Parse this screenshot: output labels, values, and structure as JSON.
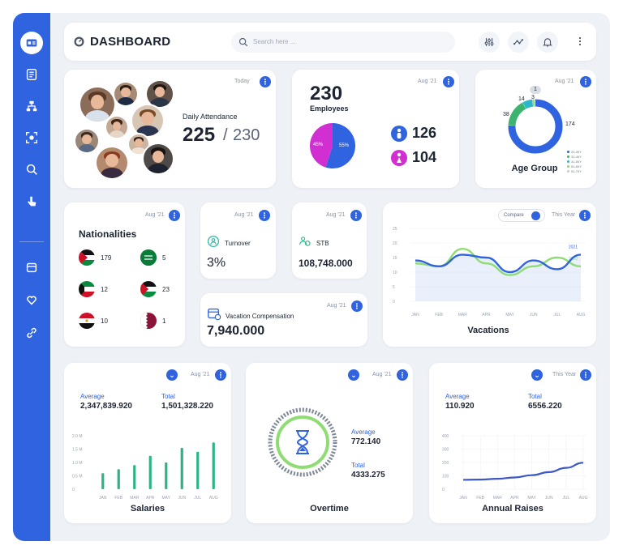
{
  "header": {
    "title": "DASHBOARD",
    "search_placeholder": "Search here ..."
  },
  "attendance": {
    "tag": "Today",
    "label": "Daily Attendance",
    "present": "225",
    "separator": "/",
    "total": "230"
  },
  "employees": {
    "tag": "Aug '21",
    "count": "230",
    "label": "Employees",
    "male_count": "126",
    "female_count": "104",
    "pie_male_pct": "55%",
    "pie_female_pct": "45%",
    "colors": {
      "male": "#2f63e0",
      "female": "#d12fd1"
    },
    "pie_data": [
      {
        "label": "Male",
        "value": 55
      },
      {
        "label": "Female",
        "value": 45
      }
    ]
  },
  "age_group": {
    "tag": "Aug '21",
    "title": "Age Group",
    "callouts": [
      "1",
      "3",
      "14",
      "38",
      "174"
    ],
    "legend": [
      "20-30Y",
      "31-40Y",
      "41-50Y",
      "51-60Y",
      "51-70Y"
    ],
    "segments": [
      {
        "label": "20-30Y",
        "value": 174,
        "color": "#2f63e0"
      },
      {
        "label": "31-40Y",
        "value": 38,
        "color": "#3db46d"
      },
      {
        "label": "41-50Y",
        "value": 14,
        "color": "#2ab8c9"
      },
      {
        "label": "51-60Y",
        "value": 3,
        "color": "#9ad46b"
      },
      {
        "label": "51-70Y",
        "value": 1,
        "color": "#c4c9d4"
      }
    ]
  },
  "nationalities": {
    "tag": "Aug '21",
    "title": "Nationalities",
    "items": [
      {
        "flag": "jordan-flag",
        "value": "179"
      },
      {
        "flag": "saudi-flag",
        "value": "5"
      },
      {
        "flag": "kuwait-flag",
        "value": "12"
      },
      {
        "flag": "palestine-flag",
        "value": "23"
      },
      {
        "flag": "egypt-flag",
        "value": "10"
      },
      {
        "flag": "qatar-flag",
        "value": "1"
      }
    ]
  },
  "turnover": {
    "tag": "Aug '21",
    "label": "Turnover",
    "value": "3%"
  },
  "stb": {
    "tag": "Aug '21",
    "label": "STB",
    "value": "108,748.000"
  },
  "vacation_comp": {
    "tag": "Aug '21",
    "label": "Vacation Compensation",
    "value": "7,940.000"
  },
  "vacations": {
    "compare_label": "Compare",
    "tag": "This Year",
    "title": "Vacations",
    "chart_data": {
      "type": "line",
      "categories": [
        "JAN",
        "FEB",
        "MAR",
        "APR",
        "MAY",
        "JUN",
        "JUL",
        "AUG"
      ],
      "series": [
        {
          "name": "2020",
          "values": [
            13,
            12,
            18,
            13,
            9,
            12,
            15,
            12
          ],
          "color": "#8fdc74"
        },
        {
          "name": "2021",
          "values": [
            14,
            12,
            16,
            15,
            10,
            14,
            11,
            16
          ],
          "color": "#2f63e0"
        }
      ],
      "yticks": [
        "25",
        "20",
        "15",
        "10",
        "5",
        "0"
      ],
      "ylim": [
        0,
        25
      ]
    }
  },
  "salaries": {
    "tag": "Aug '21",
    "average_label": "Average",
    "average_value": "2,347,839.920",
    "total_label": "Total",
    "total_value": "1,501,328.220",
    "title": "Salaries",
    "chart_data": {
      "type": "bar",
      "categories": [
        "JAN",
        "FEB",
        "MAR",
        "APR",
        "MAY",
        "JUN",
        "JUL",
        "AUG"
      ],
      "values": [
        0.6,
        0.75,
        0.9,
        1.25,
        1.0,
        1.55,
        1.4,
        1.75
      ],
      "yticks": [
        "2.0 M",
        "1.5 M",
        "1.0 M",
        "0.5 M",
        "0"
      ],
      "ylim": [
        0,
        2.0
      ],
      "color": "#2db388"
    }
  },
  "overtime": {
    "tag": "Aug '21",
    "average_label": "Average",
    "average_value": "772.140",
    "total_label": "Total",
    "total_value": "4333.275",
    "title": "Overtime"
  },
  "raises": {
    "tag": "This Year",
    "average_label": "Average",
    "average_value": "110.920",
    "total_label": "Total",
    "total_value": "6556.220",
    "title": "Annual Raises",
    "chart_data": {
      "type": "line",
      "categories": [
        "JAN",
        "FEB",
        "MAR",
        "APR",
        "MAY",
        "JUN",
        "JUL",
        "AUG"
      ],
      "series": [
        {
          "values": [
            70,
            72,
            78,
            88,
            105,
            128,
            160,
            198
          ],
          "color": "#3d57c7"
        }
      ],
      "yticks": [
        "400",
        "300",
        "200",
        "100",
        "0"
      ],
      "ylim": [
        0,
        400
      ]
    }
  }
}
